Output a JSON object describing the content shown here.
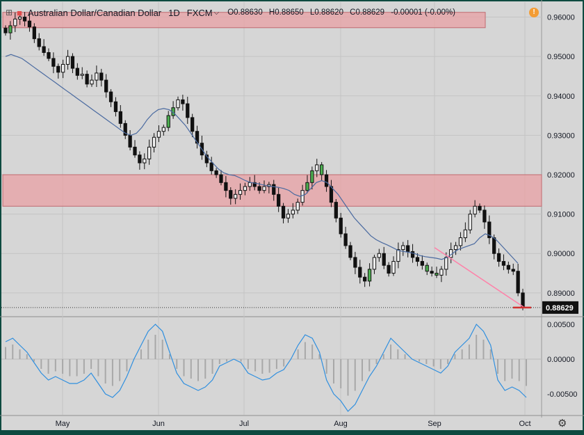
{
  "header": {
    "symbol_icon": "grid-square-icon",
    "status_dot": "■",
    "title": "Australian Dollar/Canadian Dollar",
    "timeframe": "1D",
    "feed": "FXCM",
    "caret": "⌵",
    "ohlc": {
      "o": "O0.88630",
      "h": "H0.88650",
      "l": "L0.88620",
      "c": "C0.88629",
      "chg": "-0.00001 (-0.00%)"
    },
    "alert_icon": "!",
    "colors": {
      "up": "#4caf50",
      "down": "#111111",
      "ma": "#4a6aa0",
      "zone": "#e8a0a4",
      "osc": "#2f8fdf"
    }
  },
  "settings_icon": "⚙",
  "chart_data": [
    {
      "type": "candlestick",
      "series": [
        {
          "name": "",
          "values": [
            0.956,
            0.9578,
            0.9595,
            0.96,
            0.959,
            0.9575,
            0.9545,
            0.9525,
            0.951,
            0.9495,
            0.9475,
            0.946,
            0.948,
            0.95,
            0.947,
            0.9452,
            0.9455,
            0.943,
            0.944,
            0.9458,
            0.944,
            0.941,
            0.9385,
            0.936,
            0.933,
            0.93,
            0.927,
            0.925,
            0.923,
            0.924,
            0.927,
            0.9295,
            0.931,
            0.932,
            0.935,
            0.937,
            0.939,
            0.938,
            0.9345,
            0.931,
            0.928,
            0.925,
            0.923,
            0.921,
            0.92,
            0.918,
            0.916,
            0.914,
            0.915,
            0.916,
            0.917,
            0.918,
            0.917,
            0.916,
            0.917,
            0.9175,
            0.915,
            0.912,
            0.909,
            0.91,
            0.911,
            0.913,
            0.916,
            0.918,
            0.921,
            0.9225,
            0.92,
            0.917,
            0.913,
            0.909,
            0.905,
            0.902,
            0.899,
            0.8965,
            0.894,
            0.893,
            0.896,
            0.899,
            0.9,
            0.897,
            0.895,
            0.898,
            0.901,
            0.902,
            0.9005,
            0.899,
            0.898,
            0.897,
            0.8955,
            0.895,
            0.8945,
            0.896,
            0.899,
            0.901,
            0.902,
            0.904,
            0.906,
            0.91,
            0.912,
            0.911,
            0.908,
            0.904,
            0.9,
            0.898,
            0.897,
            0.896,
            0.8955,
            0.89,
            0.88629
          ]
        },
        {
          "name": "",
          "values": [
            0.95,
            0.9505,
            0.95,
            0.9495,
            0.9485,
            0.9475,
            0.9465,
            0.9455,
            0.9445,
            0.9435,
            0.9425,
            0.9415,
            0.9405,
            0.9395,
            0.9385,
            0.9375,
            0.9365,
            0.9355,
            0.9345,
            0.9335,
            0.9325,
            0.9315,
            0.9305,
            0.93,
            0.9305,
            0.932,
            0.934,
            0.9355,
            0.9365,
            0.9368,
            0.9365,
            0.9355,
            0.934,
            0.9325,
            0.9305,
            0.9285,
            0.9265,
            0.9245,
            0.923,
            0.9215,
            0.9205,
            0.92,
            0.9198,
            0.9192,
            0.9185,
            0.918,
            0.9178,
            0.9175,
            0.9172,
            0.917,
            0.9168,
            0.9165,
            0.916,
            0.915,
            0.9145,
            0.915,
            0.9165,
            0.918,
            0.9185,
            0.918,
            0.9165,
            0.915,
            0.913,
            0.911,
            0.909,
            0.9075,
            0.906,
            0.9045,
            0.9035,
            0.9028,
            0.9022,
            0.9015,
            0.9008,
            0.9005,
            0.9003,
            0.9,
            0.8995,
            0.8992,
            0.899,
            0.8988,
            0.8985,
            0.899,
            0.9,
            0.901,
            0.9015,
            0.902,
            0.9025,
            0.904,
            0.905,
            0.9045,
            0.9035,
            0.902,
            0.9005,
            0.899,
            0.8975
          ]
        },
        {
          "name": "",
          "values": [
            0.0025,
            0.003,
            0.002,
            0.001,
            -0.0005,
            -0.002,
            -0.003,
            -0.0025,
            -0.003,
            -0.0035,
            -0.0035,
            -0.003,
            -0.002,
            -0.0035,
            -0.005,
            -0.0055,
            -0.0045,
            -0.0025,
            0.0,
            0.002,
            0.004,
            0.005,
            0.004,
            0.001,
            -0.002,
            -0.0035,
            -0.004,
            -0.0045,
            -0.004,
            -0.003,
            -0.001,
            -0.0005,
            0.0,
            -0.0005,
            -0.002,
            -0.0025,
            -0.003,
            -0.0028,
            -0.002,
            -0.0015,
            0.0,
            0.002,
            0.0035,
            0.003,
            0.001,
            -0.003,
            -0.005,
            -0.006,
            -0.0075,
            -0.0065,
            -0.0045,
            -0.0025,
            -0.001,
            0.001,
            0.003,
            0.002,
            0.001,
            0.0,
            -0.0005,
            -0.001,
            -0.0015,
            -0.002,
            -0.001,
            0.001,
            0.002,
            0.003,
            0.005,
            0.004,
            0.002,
            -0.003,
            -0.0045,
            -0.004,
            -0.0045,
            -0.0055
          ]
        }
      ],
      "yticks": [
        "0.96000",
        "0.95000",
        "0.94000",
        "0.93000",
        "0.92000",
        "0.91000",
        "0.90000",
        "0.89000"
      ],
      "ylim": [
        0.8845,
        0.9638
      ],
      "last_price_label": "0.88629",
      "zones": [
        {
          "from": 0.9573,
          "to": 0.9612
        },
        {
          "from": 0.912,
          "to": 0.92
        }
      ],
      "trendline": [
        {
          "date": "Sep 1",
          "y": 0.9015
        },
        {
          "date": "Oct 1",
          "y": 0.8862
        }
      ]
    },
    {
      "type": "histogram-with-line",
      "yticks": [
        "0.00500",
        "0.00000",
        "-0.00500"
      ],
      "ylim": [
        -0.008,
        0.006
      ],
      "xticks": [
        "May",
        "Jun",
        "Jul",
        "Aug",
        "Sep",
        "Oct"
      ]
    }
  ]
}
